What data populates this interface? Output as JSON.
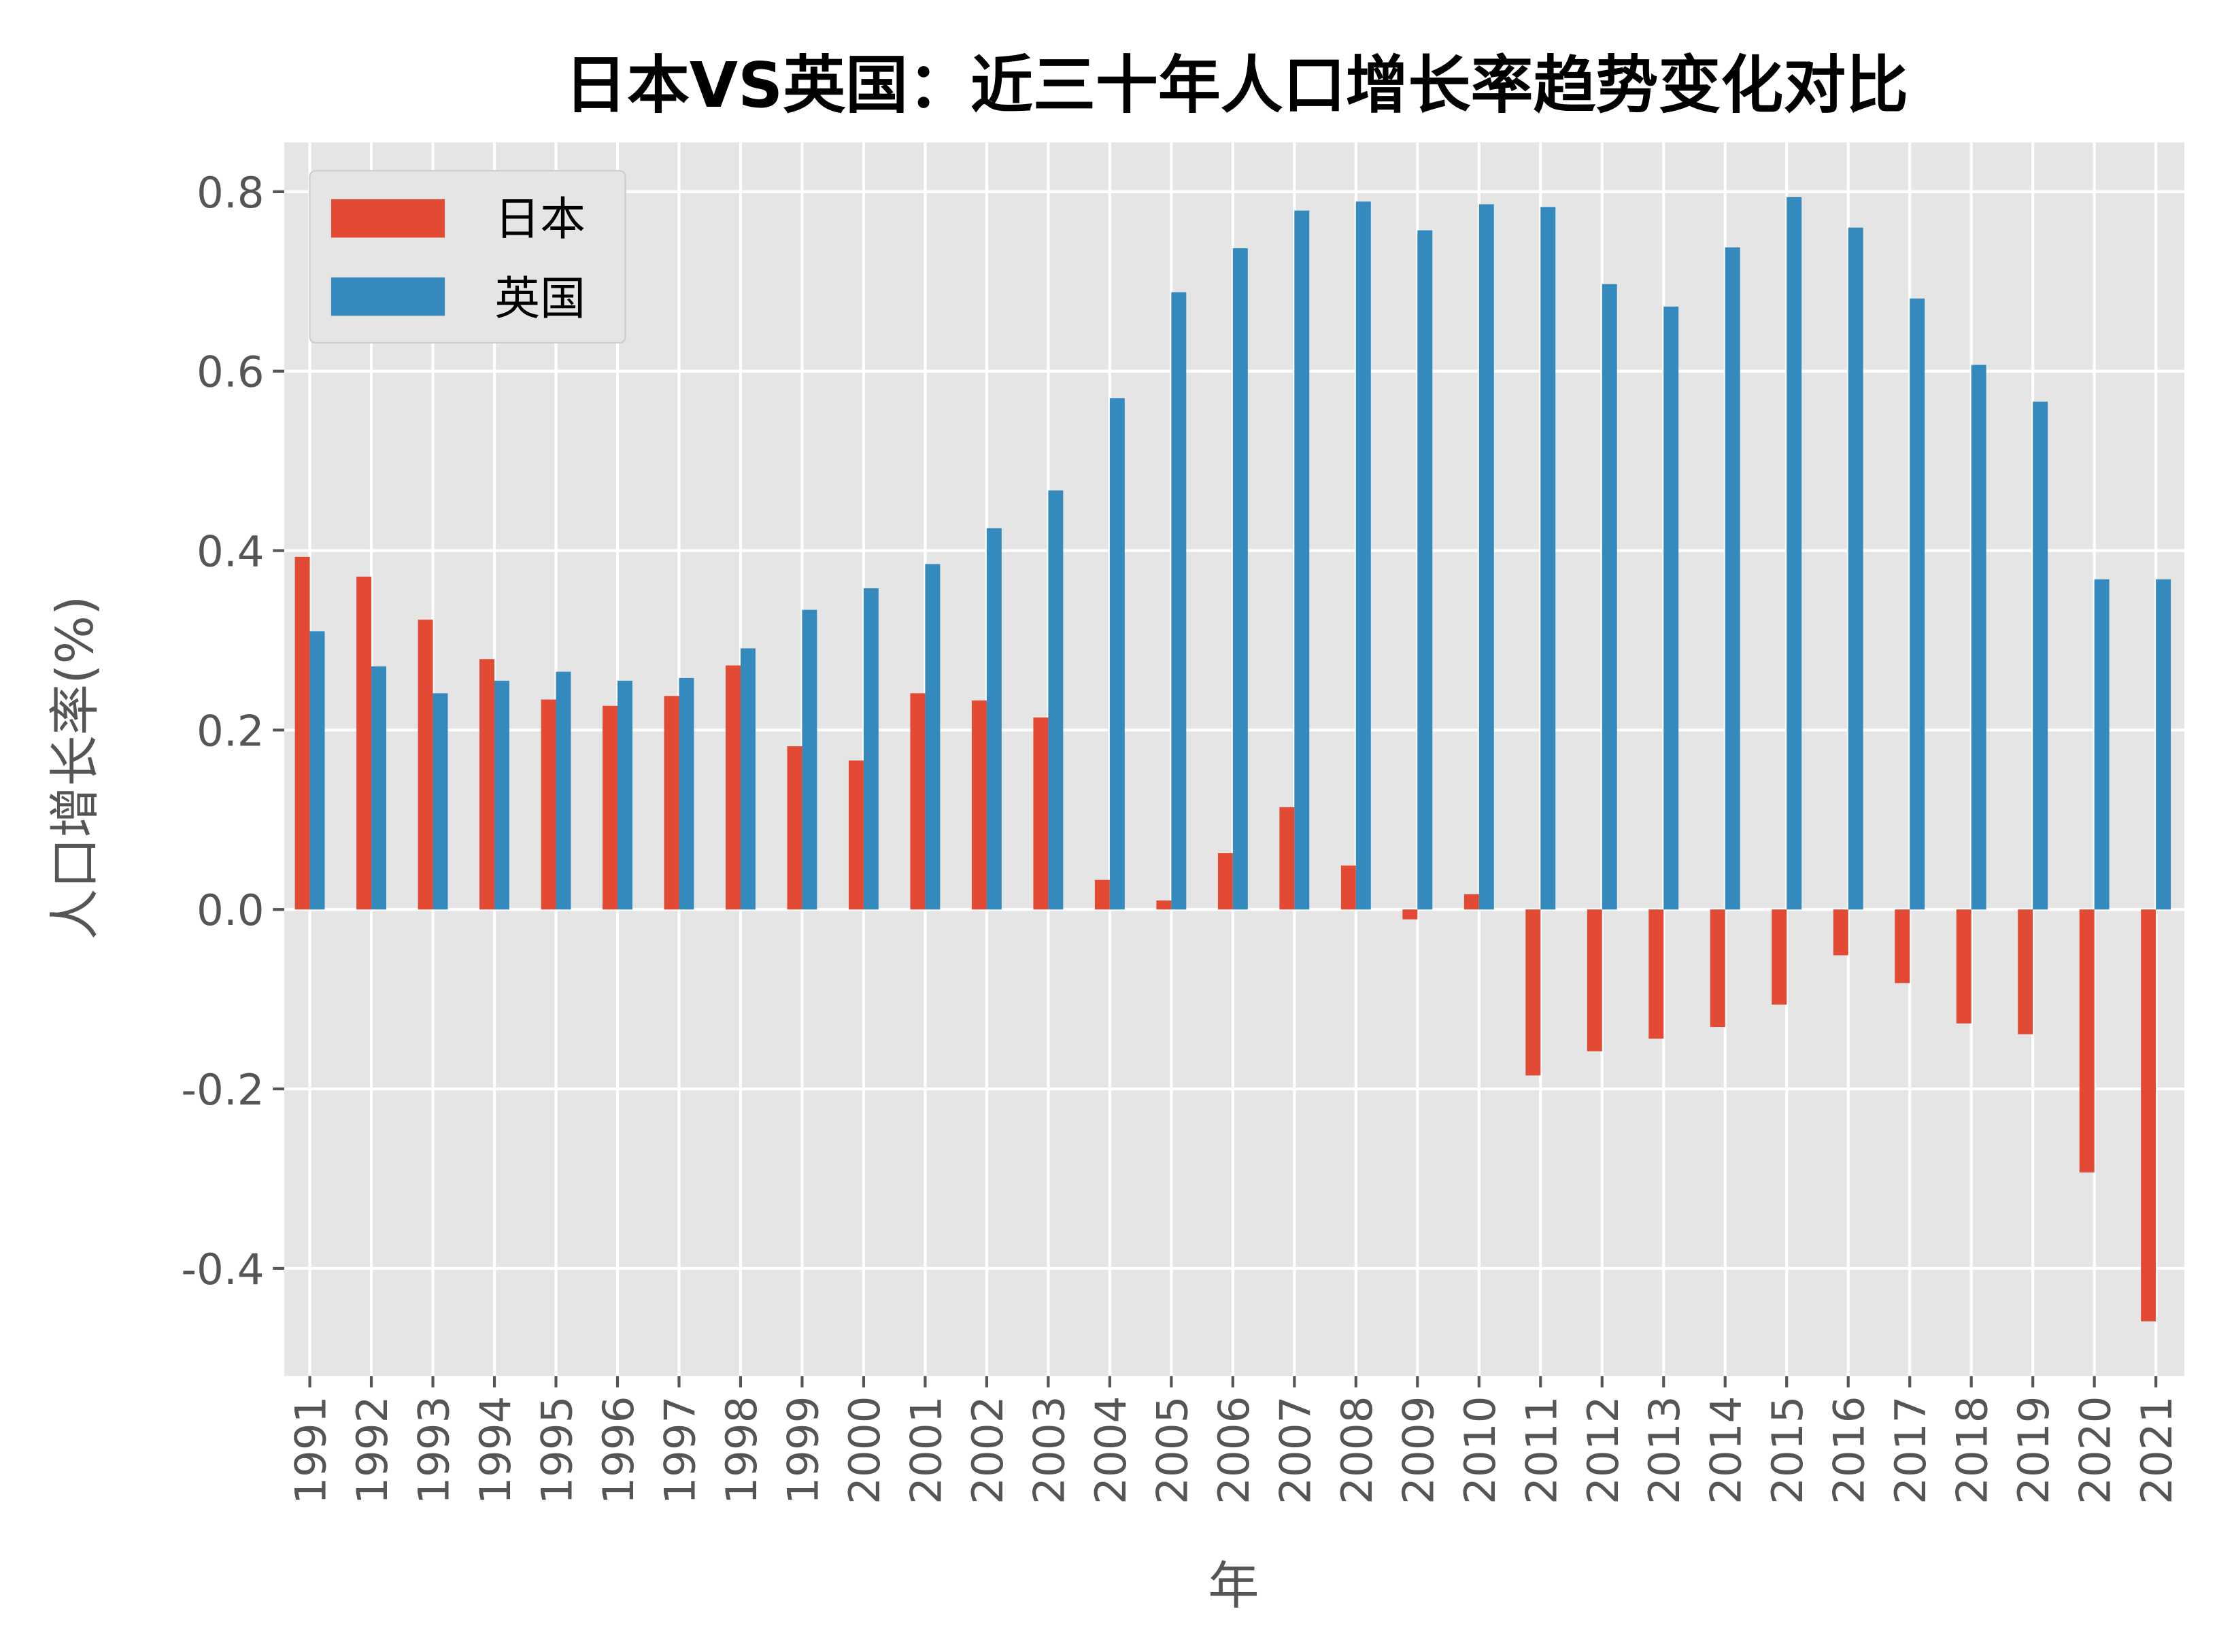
{
  "chart_data": {
    "type": "bar",
    "title": "日本VS英国：近三十年人口增长率趋势变化对比",
    "xlabel": "年",
    "ylabel": "人口增长率(%)",
    "ylim": [
      -0.52,
      0.855
    ],
    "yticks": [
      -0.4,
      -0.2,
      0.0,
      0.2,
      0.4,
      0.6,
      0.8
    ],
    "ytick_labels": [
      "-0.4",
      "-0.2",
      "0.0",
      "0.2",
      "0.4",
      "0.6",
      "0.8"
    ],
    "grid": true,
    "legend_position": "top-left",
    "categories": [
      "1991",
      "1992",
      "1993",
      "1994",
      "1995",
      "1996",
      "1997",
      "1998",
      "1999",
      "2000",
      "2001",
      "2002",
      "2003",
      "2004",
      "2005",
      "2006",
      "2007",
      "2008",
      "2009",
      "2010",
      "2011",
      "2012",
      "2013",
      "2014",
      "2015",
      "2016",
      "2017",
      "2018",
      "2019",
      "2020",
      "2021"
    ],
    "series": [
      {
        "name": "日本",
        "color": "#E24A33",
        "values": [
          0.393,
          0.371,
          0.323,
          0.279,
          0.234,
          0.227,
          0.238,
          0.272,
          0.182,
          0.166,
          0.241,
          0.233,
          0.214,
          0.033,
          0.01,
          0.063,
          0.114,
          0.049,
          -0.011,
          0.017,
          -0.185,
          -0.158,
          -0.144,
          -0.131,
          -0.106,
          -0.051,
          -0.082,
          -0.127,
          -0.139,
          -0.293,
          -0.459
        ]
      },
      {
        "name": "英国",
        "color": "#348ABD",
        "values": [
          0.31,
          0.271,
          0.241,
          0.255,
          0.265,
          0.255,
          0.258,
          0.291,
          0.334,
          0.358,
          0.385,
          0.425,
          0.467,
          0.57,
          0.688,
          0.737,
          0.779,
          0.789,
          0.757,
          0.786,
          0.783,
          0.697,
          0.672,
          0.738,
          0.794,
          0.76,
          0.681,
          0.607,
          0.566,
          0.368,
          0.368
        ]
      }
    ]
  }
}
